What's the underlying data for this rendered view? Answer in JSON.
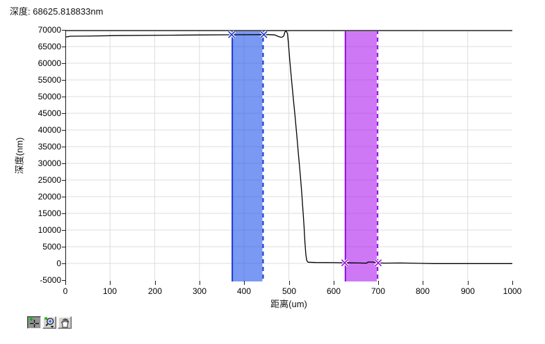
{
  "header": {
    "depth_readout": "深度: 68625.818833nm"
  },
  "chart_data": {
    "type": "line",
    "title": "",
    "xlabel": "距离(um)",
    "ylabel": "深度(nm)",
    "xlim": [
      0,
      1000
    ],
    "ylim": [
      -5000,
      70000
    ],
    "grid": true,
    "x_ticks": [
      0,
      100,
      200,
      300,
      400,
      500,
      600,
      700,
      800,
      900,
      1000
    ],
    "y_ticks": [
      70000,
      65000,
      60000,
      55000,
      50000,
      45000,
      40000,
      35000,
      30000,
      25000,
      20000,
      15000,
      10000,
      5000,
      0,
      -5000
    ],
    "colors": {
      "grid": "#dcdcdc",
      "top_border": "#5a5a5a",
      "axis": "#1a1a1a",
      "line": "#000000"
    },
    "series": [
      {
        "name": "depth-profile",
        "points": [
          [
            0,
            67900
          ],
          [
            6,
            67950
          ],
          [
            10,
            68100
          ],
          [
            55,
            68150
          ],
          [
            115,
            68300
          ],
          [
            240,
            68420
          ],
          [
            300,
            68480
          ],
          [
            370,
            68550
          ],
          [
            455,
            68580
          ],
          [
            468,
            68500
          ],
          [
            476,
            68050
          ],
          [
            482,
            67800
          ],
          [
            486,
            67850
          ],
          [
            489,
            68300
          ],
          [
            491,
            69300
          ],
          [
            493,
            69650
          ],
          [
            495,
            69500
          ],
          [
            497,
            68800
          ],
          [
            499,
            66000
          ],
          [
            502,
            61000
          ],
          [
            506,
            55000
          ],
          [
            510,
            49500
          ],
          [
            514,
            44000
          ],
          [
            518,
            38000
          ],
          [
            522,
            32000
          ],
          [
            526,
            26000
          ],
          [
            529,
            21000
          ],
          [
            532,
            15000
          ],
          [
            534,
            11000
          ],
          [
            536,
            6500
          ],
          [
            538,
            2800
          ],
          [
            540,
            900
          ],
          [
            543,
            350
          ],
          [
            560,
            280
          ],
          [
            600,
            220
          ],
          [
            625,
            170
          ],
          [
            655,
            120
          ],
          [
            674,
            60
          ],
          [
            677,
            420
          ],
          [
            688,
            380
          ],
          [
            696,
            320
          ],
          [
            700,
            140
          ],
          [
            715,
            90
          ],
          [
            750,
            130
          ],
          [
            790,
            30
          ],
          [
            825,
            -60
          ],
          [
            900,
            -70
          ],
          [
            1000,
            -60
          ]
        ]
      }
    ],
    "cursor_bands": [
      {
        "name": "blue-cursor-band",
        "x1": 372,
        "x2": 444,
        "fill": "rgba(40,90,235,0.62)",
        "edge": "#1c39cf"
      },
      {
        "name": "purple-cursor-band",
        "x1": 625,
        "x2": 700,
        "fill": "rgba(175,30,240,0.60)",
        "edge": "#9410dc"
      }
    ],
    "cursors": [
      {
        "x": 372,
        "y": 68580,
        "color": "#1c39cf"
      },
      {
        "x": 444,
        "y": 68580,
        "color": "#1c39cf"
      },
      {
        "x": 625,
        "y": 170,
        "color": "#9410dc"
      },
      {
        "x": 700,
        "y": 140,
        "color": "#9410dc"
      }
    ]
  },
  "toolbar": {
    "buttons": [
      {
        "icon": "crosshair-cursor-icon",
        "active": true
      },
      {
        "icon": "zoom-magnifier-icon",
        "active": false
      },
      {
        "icon": "pan-hand-icon",
        "active": false
      }
    ]
  }
}
